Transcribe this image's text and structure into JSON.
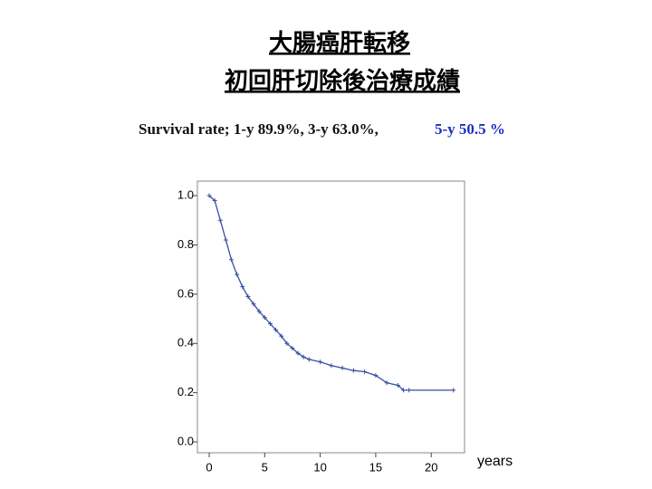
{
  "chart_data": {
    "type": "line",
    "title_lines": [
      "大腸癌肝転移",
      "初回肝切除後治療成績"
    ],
    "annotations": [
      {
        "text": "Survival rate; 1-y  89.9%, 3-y 63.0%,",
        "color": "#111111"
      },
      {
        "text": "5-y 50.5 %",
        "color": "#1a2fc0"
      }
    ],
    "x_label": "years",
    "x": [
      0,
      0.5,
      1,
      1.5,
      2,
      2.5,
      3,
      3.5,
      4,
      4.5,
      5,
      5.5,
      6,
      6.5,
      7,
      7.5,
      8,
      8.5,
      9,
      10,
      11,
      12,
      13,
      14,
      15,
      16,
      17,
      17.5,
      18,
      22
    ],
    "series": [
      {
        "color": "#3a4fa0",
        "values": [
          1.0,
          0.98,
          0.9,
          0.82,
          0.74,
          0.68,
          0.63,
          0.59,
          0.56,
          0.53,
          0.505,
          0.48,
          0.455,
          0.43,
          0.4,
          0.38,
          0.36,
          0.345,
          0.335,
          0.325,
          0.31,
          0.3,
          0.29,
          0.285,
          0.27,
          0.24,
          0.23,
          0.21,
          0.21,
          0.21
        ]
      }
    ],
    "xlim": [
      -1.06,
      23.0
    ],
    "ylim": [
      -0.044,
      1.059
    ],
    "xticks": [
      0,
      5,
      10,
      15,
      20
    ],
    "yticks": [
      {
        "value": 0,
        "label": "0.0"
      },
      0.2,
      0.4,
      0.6,
      0.8,
      {
        "value": 1,
        "label": "1.0"
      }
    ],
    "grid": false
  }
}
